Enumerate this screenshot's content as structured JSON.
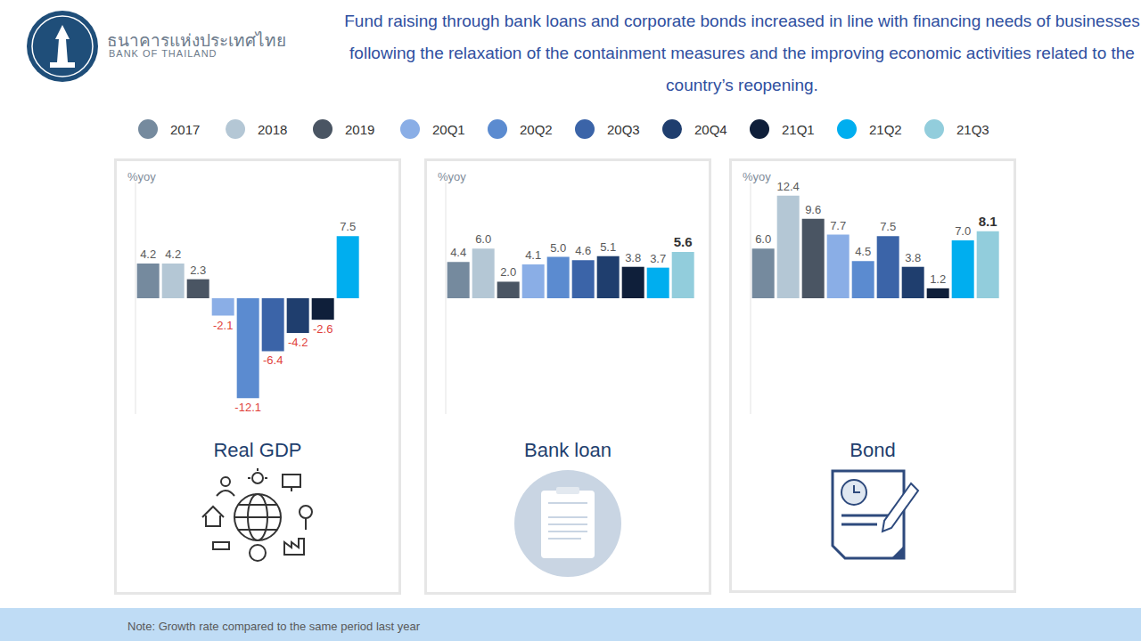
{
  "header": {
    "logo_name_thai": "ธนาคารแห่งประเทศไทย",
    "logo_name": "BANK OF THAILAND",
    "title": "Fund raising through bank loans and corporate bonds increased in line with financing needs of businesses following the relaxation of the containment measures and the improving economic activities related to the country’s reopening."
  },
  "note": "Note: Growth rate compared to the same period last year",
  "chart_data": [
    {
      "type": "bar",
      "title": "Real GDP",
      "ylabel": "%yoy",
      "categories": [
        "2017",
        "2018",
        "2019",
        "20Q1",
        "20Q2",
        "20Q3",
        "20Q4",
        "21Q1",
        "21Q2",
        "21Q3"
      ],
      "colors": [
        "#758a9e",
        "#b4c7d5",
        "#4a5563",
        "#8aaee6",
        "#5b8bd0",
        "#3b64a8",
        "#1f3e6e",
        "#0f1f3a",
        "#00aeef",
        "#92cddc"
      ],
      "values": [
        4.2,
        4.2,
        2.3,
        -2.1,
        -12.1,
        -6.4,
        -4.2,
        -2.6,
        7.5,
        null
      ],
      "value_labels": [
        "4.2",
        "4.2",
        "2.3",
        "-2.1",
        "-12.1",
        "-6.4",
        "-4.2",
        "-2.6",
        "7.5",
        null
      ],
      "ylim": [
        -14,
        14
      ],
      "yticks": [
        -14,
        0,
        14
      ],
      "grid": false,
      "legend": "top",
      "data_labels": true,
      "tick_labels": false
    },
    {
      "type": "bar",
      "title": "Bank loan",
      "ylabel": "%yoy",
      "categories": [
        "2017",
        "2018",
        "2019",
        "20Q1",
        "20Q2",
        "20Q3",
        "20Q4",
        "21Q1",
        "21Q2",
        "21Q3"
      ],
      "colors": [
        "#758a9e",
        "#b4c7d5",
        "#4a5563",
        "#8aaee6",
        "#5b8bd0",
        "#3b64a8",
        "#1f3e6e",
        "#0f1f3a",
        "#00aeef",
        "#92cddc"
      ],
      "values": [
        4.4,
        6.0,
        2.0,
        4.1,
        5.0,
        4.6,
        5.1,
        3.8,
        3.7,
        5.6
      ],
      "value_labels": [
        "4.4",
        "6.0",
        "2.0",
        "4.1",
        "5.0",
        "4.6",
        "5.1",
        "3.8",
        "3.7",
        "5.6"
      ],
      "ylim": [
        -14,
        14
      ],
      "yticks": [
        -14,
        0,
        14
      ],
      "grid": false,
      "data_labels": true,
      "tick_labels": false
    },
    {
      "type": "bar",
      "title": "Bond",
      "ylabel": "%yoy",
      "categories": [
        "2017",
        "2018",
        "2019",
        "20Q1",
        "20Q2",
        "20Q3",
        "20Q4",
        "21Q1",
        "21Q2",
        "21Q3"
      ],
      "colors": [
        "#758a9e",
        "#b4c7d5",
        "#4a5563",
        "#8aaee6",
        "#5b8bd0",
        "#3b64a8",
        "#1f3e6e",
        "#0f1f3a",
        "#00aeef",
        "#92cddc"
      ],
      "values": [
        6.0,
        12.4,
        9.6,
        7.7,
        4.5,
        7.5,
        3.8,
        1.2,
        7.0,
        8.1
      ],
      "value_labels": [
        "6.0",
        "12.4",
        "9.6",
        "7.7",
        "4.5",
        "7.5",
        "3.8",
        "1.2",
        "7.0",
        "8.1"
      ],
      "ylim": [
        -14,
        14
      ],
      "yticks": [
        -14,
        0,
        14
      ],
      "grid": false,
      "data_labels": true,
      "tick_labels": false
    }
  ]
}
